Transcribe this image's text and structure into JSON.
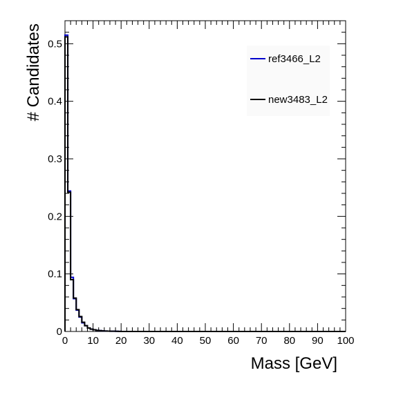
{
  "chart_data": {
    "type": "line",
    "xlabel": "Mass [GeV]",
    "ylabel": "# Candidates",
    "xlim": [
      0,
      100
    ],
    "ylim": [
      0,
      0.54
    ],
    "x_ticks": [
      0,
      10,
      20,
      30,
      40,
      50,
      60,
      70,
      80,
      90,
      100
    ],
    "y_ticks": [
      0,
      0.1,
      0.2,
      0.3,
      0.4,
      0.5
    ],
    "y_tick_labels": [
      "0",
      "0.1",
      "0.2",
      "0.3",
      "0.4",
      "0.5"
    ],
    "bin_width": 1,
    "grid": false,
    "legend_position": "top-right",
    "series": [
      {
        "name": "ref3466_L2",
        "color": "#0000cc",
        "values": [
          0.515,
          0.244,
          0.094,
          0.057,
          0.037,
          0.025,
          0.015,
          0.01,
          0.006,
          0.004,
          0.003,
          0.002,
          0.0015,
          0.001,
          0.0008,
          0.0006,
          0.0005,
          0.0004,
          0.0003,
          0.0002
        ]
      },
      {
        "name": "new3483_L2",
        "color": "#000000",
        "values": [
          0.512,
          0.242,
          0.09,
          0.058,
          0.038,
          0.026,
          0.016,
          0.01,
          0.006,
          0.004,
          0.003,
          0.002,
          0.0015,
          0.001,
          0.0008,
          0.0006,
          0.0005,
          0.0004,
          0.0003,
          0.0002
        ]
      }
    ]
  }
}
